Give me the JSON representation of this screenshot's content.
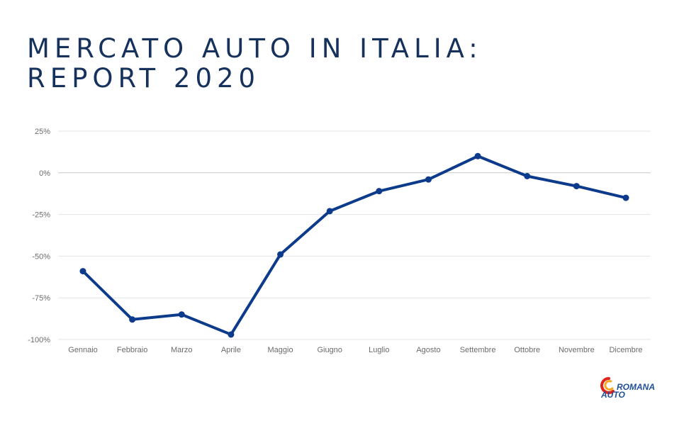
{
  "title_lines": [
    "MERCATO AUTO IN ITALIA:",
    "REPORT 2020"
  ],
  "logo": {
    "line1": "ROMANA",
    "line2": "AUTO",
    "text_color": "#1f4e9c",
    "swirl_colors": [
      "#e2231a",
      "#f7a823"
    ]
  },
  "colors": {
    "title": "#16325c",
    "line": "#0d3b8c",
    "grid": "#e6e6e6",
    "zero_line": "#c8c8c8",
    "tick": "#6b6b6b"
  },
  "chart_data": {
    "type": "line",
    "title": "",
    "xlabel": "",
    "ylabel": "",
    "categories": [
      "Gennaio",
      "Febbraio",
      "Marzo",
      "Aprile",
      "Maggio",
      "Giugno",
      "Luglio",
      "Agosto",
      "Settembre",
      "Ottobre",
      "Novembre",
      "Dicembre"
    ],
    "series": [
      {
        "values": [
          -59,
          -88,
          -85,
          -97,
          -49,
          -23,
          -11,
          -4,
          10,
          -2,
          -8,
          -15
        ]
      }
    ],
    "ylim": [
      -100,
      25
    ],
    "yticks": [
      25,
      0,
      -25,
      -50,
      -75,
      -100
    ],
    "ytick_labels": [
      "25%",
      "0%",
      "-25%",
      "-50%",
      "-75%",
      "-100%"
    ],
    "grid": true,
    "legend": "none"
  }
}
